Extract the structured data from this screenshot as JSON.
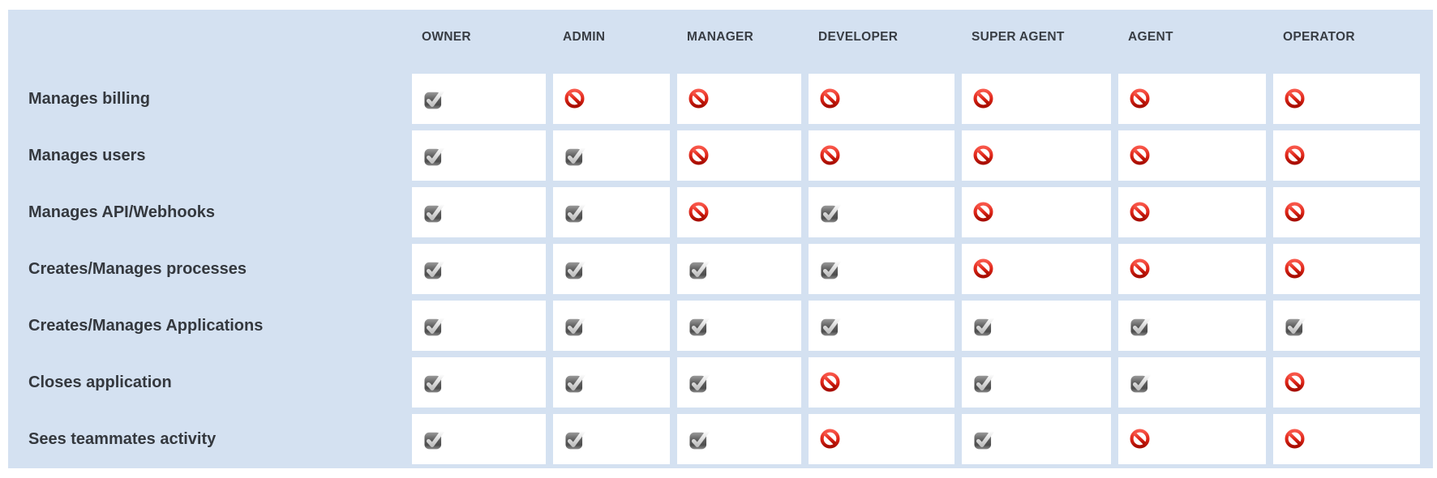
{
  "table": {
    "columns": [
      "OWNER",
      "ADMIN",
      "MANAGER",
      "DEVELOPER",
      "SUPER AGENT",
      "AGENT",
      "OPERATOR"
    ],
    "rows": [
      {
        "label": "Manages billing",
        "permissions": [
          "allowed",
          "denied",
          "denied",
          "denied",
          "denied",
          "denied",
          "denied"
        ]
      },
      {
        "label": "Manages users",
        "permissions": [
          "allowed",
          "allowed",
          "denied",
          "denied",
          "denied",
          "denied",
          "denied"
        ]
      },
      {
        "label": "Manages API/Webhooks",
        "permissions": [
          "allowed",
          "allowed",
          "denied",
          "allowed",
          "denied",
          "denied",
          "denied"
        ]
      },
      {
        "label": "Creates/Manages processes",
        "permissions": [
          "allowed",
          "allowed",
          "allowed",
          "allowed",
          "denied",
          "denied",
          "denied"
        ]
      },
      {
        "label": "Creates/Manages Applications",
        "permissions": [
          "allowed",
          "allowed",
          "allowed",
          "allowed",
          "allowed",
          "allowed",
          "allowed"
        ]
      },
      {
        "label": "Closes application",
        "permissions": [
          "allowed",
          "allowed",
          "allowed",
          "denied",
          "allowed",
          "allowed",
          "denied"
        ]
      },
      {
        "label": "Sees teammates activity",
        "permissions": [
          "allowed",
          "allowed",
          "allowed",
          "denied",
          "allowed",
          "denied",
          "denied"
        ]
      }
    ]
  },
  "icons": {
    "allowed": "check-icon",
    "denied": "prohibited-icon"
  },
  "colors": {
    "panel_background": "#d4e1f1",
    "cell_background": "#ffffff",
    "header_text": "#383d44",
    "label_text": "#34383e",
    "denied_red": "#e02619",
    "allowed_gray": "#595959"
  }
}
